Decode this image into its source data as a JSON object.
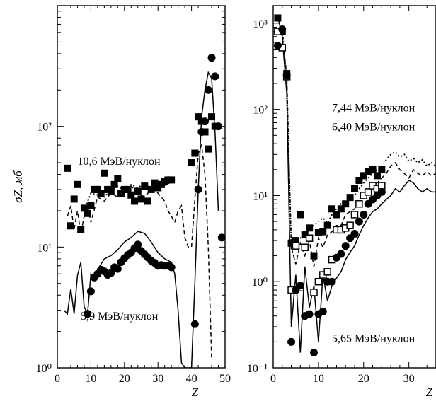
{
  "chart_data": [
    {
      "type": "scatter",
      "title": "",
      "xlabel": "Z",
      "ylabel": "σZ, мб",
      "xlim": [
        0,
        50
      ],
      "ylim": [
        1,
        1000
      ],
      "yscale": "log",
      "xticks": [
        0,
        10,
        20,
        30,
        40,
        50
      ],
      "yticks": [
        {
          "value": 1,
          "label": "10⁰"
        },
        {
          "value": 10,
          "label": "10¹"
        },
        {
          "value": 100,
          "label": "10²"
        }
      ],
      "grid": false,
      "annotations": [
        {
          "text": "10,6 МэВ/нуклон",
          "x": 6,
          "y": 48
        },
        {
          "text": "5,9 МэВ/нуклон",
          "x": 7,
          "y": 2.5
        }
      ],
      "series": [
        {
          "marker": "filled-square",
          "x": [
            3,
            4,
            5,
            6,
            7,
            8,
            9,
            10,
            11,
            12,
            13,
            14,
            15,
            16,
            17,
            18,
            19,
            20,
            21,
            22,
            23,
            24,
            25,
            26,
            27,
            28,
            29,
            30,
            31,
            32,
            33,
            34,
            40,
            41,
            42,
            43,
            44,
            45,
            46,
            47
          ],
          "y": [
            45,
            15,
            25,
            33,
            14,
            21,
            19,
            22,
            30,
            30,
            28,
            41,
            30,
            29,
            33,
            37,
            28,
            30,
            30,
            27,
            24,
            29,
            25,
            32,
            24,
            30,
            34,
            31,
            33,
            35,
            36,
            36,
            50,
            60,
            120,
            110,
            90,
            65,
            120,
            100
          ]
        },
        {
          "marker": "filled-circle",
          "x": [
            9,
            10,
            11,
            12,
            13,
            14,
            15,
            16,
            17,
            18,
            19,
            20,
            21,
            22,
            23,
            24,
            25,
            26,
            27,
            28,
            29,
            30,
            31,
            32,
            33,
            34,
            41,
            42,
            43,
            44,
            45,
            46,
            47,
            48,
            49
          ],
          "y": [
            2.8,
            4.3,
            5.6,
            6,
            6.5,
            6.3,
            5.9,
            6.1,
            6.8,
            6.6,
            7.5,
            8.1,
            8.6,
            9,
            9.8,
            10.5,
            9.3,
            8.7,
            8.2,
            7.7,
            7.4,
            7,
            7.1,
            7,
            7,
            6.8,
            2.3,
            30,
            90,
            110,
            200,
            370,
            260,
            100,
            12
          ]
        },
        {
          "line": "dashed",
          "x": [
            3,
            4,
            5,
            6,
            7,
            8,
            9,
            10,
            12,
            14,
            16,
            18,
            20,
            22,
            24,
            26,
            28,
            30,
            32,
            33,
            34,
            35,
            36,
            37,
            38,
            39,
            40,
            41,
            42,
            43,
            44,
            45,
            46
          ],
          "y": [
            18,
            22,
            14,
            20,
            13,
            18,
            22,
            16,
            26,
            24,
            28,
            26,
            30,
            32,
            28,
            26,
            30,
            28,
            24,
            20,
            18,
            16,
            20,
            22,
            12,
            10,
            10,
            25,
            60,
            70,
            40,
            10,
            1.2
          ]
        },
        {
          "line": "dotted",
          "x": [
            8,
            10,
            12,
            14,
            16,
            18,
            20,
            22,
            24,
            26,
            28,
            30,
            32,
            34
          ],
          "y": [
            20,
            28,
            27,
            26,
            30,
            32,
            29,
            33,
            31,
            34,
            30,
            33,
            32,
            35
          ]
        },
        {
          "line": "solid",
          "x": [
            2,
            3,
            4,
            5,
            6,
            7,
            8,
            9,
            10,
            11,
            12,
            14,
            16,
            18,
            20,
            22,
            24,
            26,
            28,
            30,
            32,
            34,
            35,
            36,
            37,
            38,
            40,
            41,
            42,
            43,
            44,
            45,
            46,
            47,
            48
          ],
          "y": [
            3,
            2.8,
            4.5,
            2.8,
            5.8,
            7.5,
            3.2,
            2.8,
            6,
            5.5,
            6.5,
            8,
            8.5,
            9.5,
            11,
            12,
            13.5,
            13,
            11,
            9,
            8,
            7.5,
            6,
            3,
            1.1,
            1.0,
            1.0,
            5,
            30,
            120,
            200,
            280,
            250,
            90,
            20
          ]
        }
      ]
    },
    {
      "type": "scatter",
      "title": "",
      "xlabel": "Z",
      "ylabel": "",
      "xlim": [
        0,
        36
      ],
      "ylim": [
        0.1,
        1600
      ],
      "yscale": "log",
      "xticks": [
        0,
        10,
        20,
        30
      ],
      "yticks": [
        {
          "value": 0.1,
          "label": "10⁻¹"
        },
        {
          "value": 1,
          "label": "10⁰"
        },
        {
          "value": 10,
          "label": "10¹"
        },
        {
          "value": 100,
          "label": "10²"
        },
        {
          "value": 1000,
          "label": "10³"
        }
      ],
      "grid": false,
      "annotations": [
        {
          "text": "7,44 МэВ/нуклон",
          "x": 13,
          "y": 95
        },
        {
          "text": "6,40 МэВ/нуклон",
          "x": 13,
          "y": 57
        },
        {
          "text": "5,65 МэВ/нуклон",
          "x": 13,
          "y": 0.2
        }
      ],
      "series": [
        {
          "marker": "filled-square",
          "x": [
            1,
            2,
            3,
            4,
            5,
            6,
            7,
            8,
            9,
            10,
            11,
            12,
            13,
            14,
            15,
            16,
            17,
            18,
            19,
            20,
            21,
            22,
            23,
            24
          ],
          "y": [
            1150,
            800,
            260,
            2.8,
            3,
            6,
            3.5,
            4.2,
            2,
            3.7,
            3.8,
            4.5,
            7,
            6,
            7,
            8,
            9.5,
            12,
            15,
            17,
            19,
            20,
            17,
            20
          ]
        },
        {
          "marker": "open-square",
          "x": [
            1,
            2,
            3,
            4,
            5,
            6,
            7,
            8,
            9,
            10,
            11,
            12,
            13,
            14,
            15,
            16,
            17,
            18,
            19,
            20,
            21,
            22,
            23,
            24
          ],
          "y": [
            800,
            520,
            240,
            0.8,
            2.6,
            0.85,
            2.5,
            3.2,
            0.75,
            1,
            1.2,
            1.3,
            1.8,
            4,
            4,
            4.2,
            4.5,
            6,
            8,
            10,
            11,
            13,
            12,
            13
          ]
        },
        {
          "marker": "filled-circle",
          "x": [
            1,
            2,
            3,
            4,
            5,
            6,
            7,
            8,
            9,
            10,
            11,
            12,
            13,
            14,
            15,
            16,
            17,
            18,
            19,
            20,
            21,
            22,
            23,
            24
          ],
          "y": [
            550,
            850,
            250,
            0.2,
            0.8,
            0.9,
            0.4,
            0.42,
            0.15,
            0.42,
            0.45,
            1,
            1,
            1.9,
            2.1,
            2.6,
            3.2,
            3.6,
            5,
            6,
            8,
            9,
            10,
            11
          ]
        },
        {
          "line": "dotted",
          "x": [
            2,
            3,
            4,
            5,
            6,
            7,
            8,
            9,
            10,
            11,
            12,
            13,
            14,
            15,
            16,
            17,
            18,
            19,
            20,
            21,
            22,
            23,
            24,
            25,
            26,
            27,
            28,
            29,
            30,
            31,
            32,
            33,
            34,
            35,
            36
          ],
          "y": [
            900,
            200,
            2.5,
            3,
            3.2,
            3.5,
            4,
            4.5,
            5,
            5.5,
            4.8,
            6,
            7,
            8,
            7.5,
            9,
            10,
            12,
            14,
            16,
            18,
            20,
            22,
            26,
            30,
            32,
            28,
            30,
            25,
            27,
            24,
            26,
            22,
            24,
            22
          ]
        },
        {
          "line": "dashed",
          "x": [
            2,
            3,
            4,
            5,
            6,
            7,
            8,
            9,
            10,
            11,
            12,
            13,
            14,
            15,
            16,
            17,
            18,
            19,
            20,
            21,
            22,
            23,
            24,
            25,
            26,
            27,
            28,
            29,
            30,
            31,
            32,
            33,
            34,
            35,
            36
          ],
          "y": [
            700,
            250,
            2.5,
            1.6,
            2.8,
            2,
            3,
            1.5,
            3.2,
            2.5,
            3.5,
            3.8,
            4.5,
            4.5,
            6,
            6.5,
            7,
            9,
            10,
            11,
            13,
            14,
            16,
            18,
            22,
            24,
            20,
            18,
            16,
            20,
            18,
            17,
            19,
            17,
            18
          ]
        },
        {
          "line": "solid",
          "x": [
            1,
            2,
            3,
            4,
            5,
            6,
            7,
            8,
            9,
            10,
            11,
            12,
            13,
            14,
            15,
            16,
            17,
            18,
            19,
            20,
            21,
            22,
            23,
            24,
            25,
            26,
            27,
            28,
            29,
            30,
            31,
            32,
            33,
            34,
            35,
            36
          ],
          "y": [
            1200,
            700,
            150,
            0.3,
            1.2,
            0.15,
            1.5,
            0.5,
            0.9,
            0.2,
            1.2,
            0.6,
            0.9,
            1.1,
            1.3,
            1.8,
            2.2,
            2.6,
            3.5,
            4.5,
            5.5,
            6.5,
            7,
            8,
            9,
            10,
            12,
            11,
            13,
            15,
            14,
            12,
            11,
            12,
            11,
            11
          ]
        }
      ]
    }
  ]
}
